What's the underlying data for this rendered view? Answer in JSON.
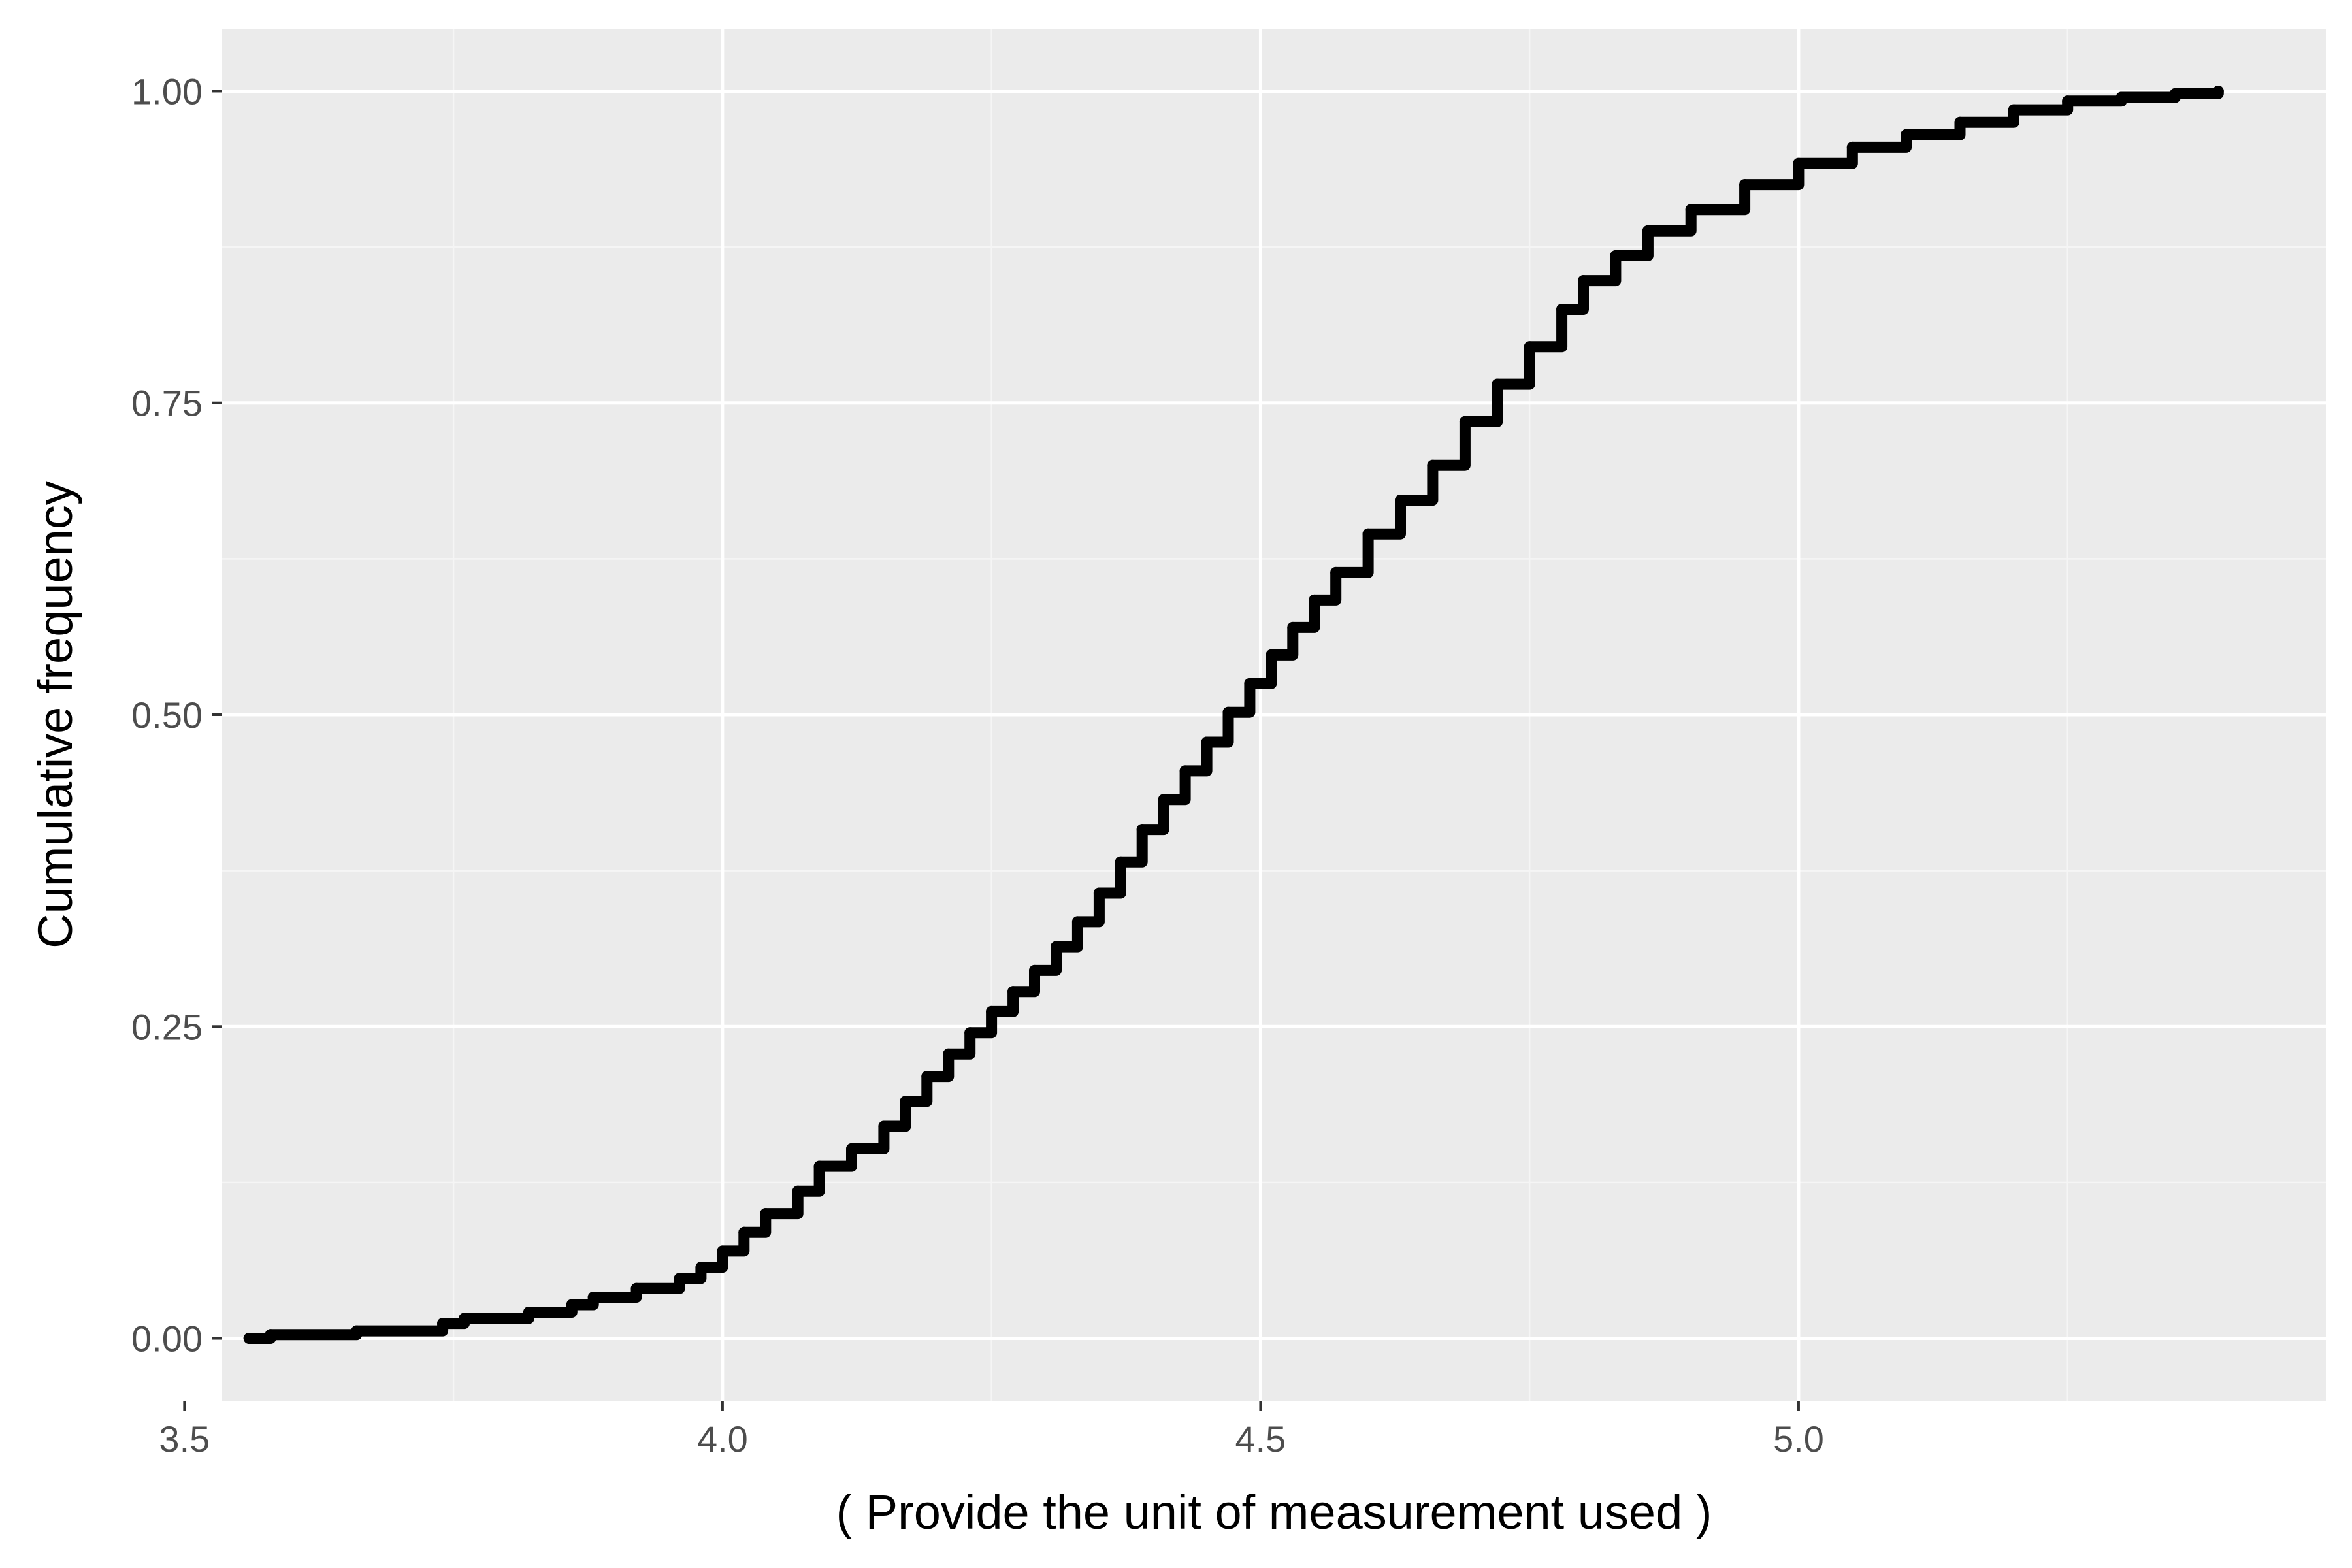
{
  "chart_data": {
    "type": "line",
    "step": true,
    "title": "",
    "xlabel": "( Provide the unit of measurement used )",
    "ylabel": "Cumulative frequency",
    "xlim": [
      3.535,
      5.49
    ],
    "ylim": [
      -0.05,
      1.05
    ],
    "x_ticks": [
      3.5,
      4.0,
      4.5,
      5.0
    ],
    "x_tick_labels": [
      "3.5",
      "4.0",
      "4.5",
      "5.0"
    ],
    "y_ticks": [
      0,
      0.25,
      0.5,
      0.75,
      1.0
    ],
    "y_tick_labels": [
      "0.00",
      "0.25",
      "0.50",
      "0.75",
      "1.00"
    ],
    "grid": true,
    "legend": "none",
    "series": [
      {
        "x": [
          3.56,
          3.58,
          3.66,
          3.74,
          3.76,
          3.82,
          3.86,
          3.88,
          3.92,
          3.96,
          3.98,
          4.0,
          4.02,
          4.04,
          4.07,
          4.09,
          4.12,
          4.15,
          4.17,
          4.19,
          4.21,
          4.23,
          4.25,
          4.27,
          4.29,
          4.31,
          4.33,
          4.35,
          4.37,
          4.39,
          4.41,
          4.43,
          4.45,
          4.47,
          4.49,
          4.51,
          4.53,
          4.55,
          4.57,
          4.6,
          4.63,
          4.66,
          4.69,
          4.72,
          4.75,
          4.78,
          4.8,
          4.83,
          4.86,
          4.9,
          4.95,
          5.0,
          5.05,
          5.1,
          5.15,
          5.2,
          5.25,
          5.3,
          5.35,
          5.39
        ],
        "y": [
          0.0,
          0.003,
          0.006,
          0.012,
          0.016,
          0.021,
          0.027,
          0.033,
          0.04,
          0.048,
          0.057,
          0.07,
          0.085,
          0.1,
          0.118,
          0.138,
          0.152,
          0.17,
          0.19,
          0.21,
          0.228,
          0.245,
          0.262,
          0.278,
          0.295,
          0.314,
          0.334,
          0.357,
          0.382,
          0.408,
          0.432,
          0.455,
          0.478,
          0.502,
          0.525,
          0.548,
          0.57,
          0.592,
          0.614,
          0.645,
          0.672,
          0.7,
          0.735,
          0.765,
          0.795,
          0.825,
          0.848,
          0.868,
          0.888,
          0.905,
          0.925,
          0.942,
          0.955,
          0.965,
          0.975,
          0.985,
          0.992,
          0.995,
          0.998,
          1.0
        ]
      }
    ]
  },
  "colors": {
    "panel_background": "#ebebeb",
    "grid_major": "#ffffff",
    "grid_minor": "#f5f5f5",
    "line": "#000000",
    "tick": "#333333",
    "tick_label": "#4d4d4d"
  }
}
